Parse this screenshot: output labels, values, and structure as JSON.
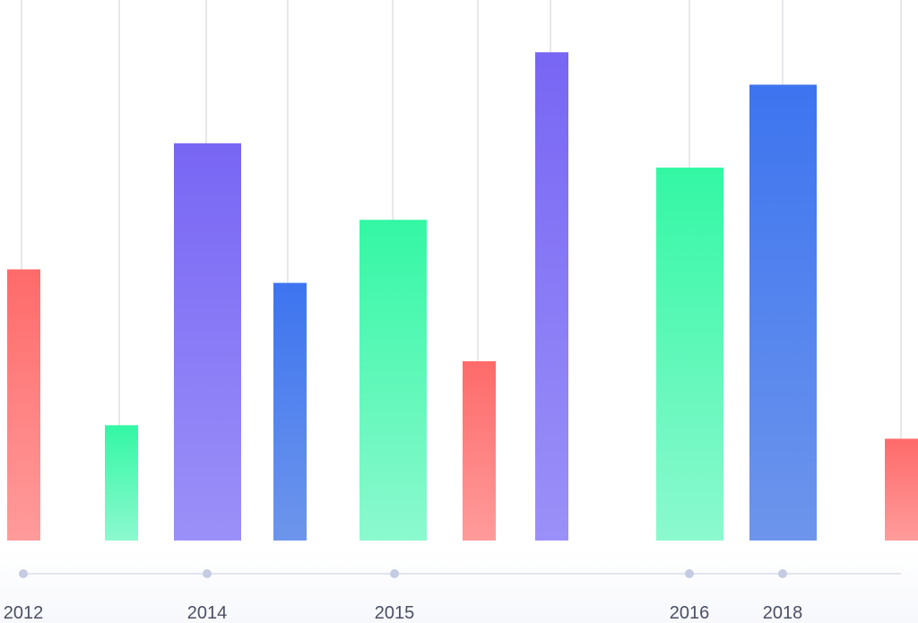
{
  "chart_data": {
    "type": "bar",
    "title": "",
    "xlabel": "",
    "ylabel": "",
    "ylim": [
      0,
      600
    ],
    "grid": false,
    "legend": "none",
    "x_tick_labels": [
      "2012",
      "2014",
      "2015",
      "2016",
      "2018"
    ],
    "bars": [
      {
        "value": 301,
        "color": "red"
      },
      {
        "value": 128,
        "color": "green"
      },
      {
        "value": 441,
        "color": "purple"
      },
      {
        "value": 286,
        "color": "blue"
      },
      {
        "value": 356,
        "color": "green"
      },
      {
        "value": 199,
        "color": "red"
      },
      {
        "value": 542,
        "color": "purple"
      },
      {
        "value": 414,
        "color": "green"
      },
      {
        "value": 506,
        "color": "blue"
      },
      {
        "value": 113,
        "color": "red"
      }
    ]
  },
  "palette": {
    "red": {
      "top": "#ff6a6a",
      "bottom": "#ff9b9b"
    },
    "green": {
      "top": "#33f7a4",
      "bottom": "#8cf9cf"
    },
    "purple": {
      "top": "#7866f4",
      "bottom": "#9b90f8"
    },
    "blue": {
      "top": "#3d74ef",
      "bottom": "#6d95ec"
    },
    "axis": "#d8dcec",
    "dot": "#c5cbe2",
    "guide": "#e0e0e4",
    "label": "#4a4f63"
  }
}
